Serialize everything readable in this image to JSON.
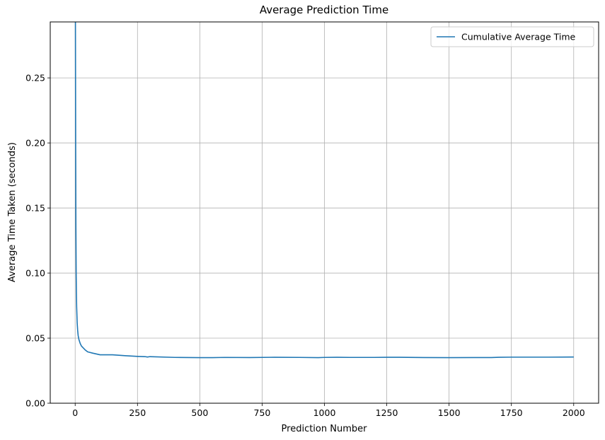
{
  "chart_data": {
    "type": "line",
    "title": "Average Prediction Time",
    "xlabel": "Prediction Number",
    "ylabel": "Average Time Taken (seconds)",
    "xlim": [
      -100,
      2100
    ],
    "ylim": [
      0,
      0.293
    ],
    "xticks": [
      0,
      250,
      500,
      750,
      1000,
      1250,
      1500,
      1750,
      2000
    ],
    "yticks": [
      0.0,
      0.05,
      0.1,
      0.15,
      0.2,
      0.25
    ],
    "xtick_labels": [
      "0",
      "250",
      "500",
      "750",
      "1000",
      "1250",
      "1500",
      "1750",
      "2000"
    ],
    "ytick_labels": [
      "0.00",
      "0.05",
      "0.10",
      "0.15",
      "0.20",
      "0.25"
    ],
    "grid": true,
    "legend_position": "top-right",
    "series": [
      {
        "name": "Cumulative Average Time",
        "color": "#1f77b4",
        "x": [
          1,
          2,
          3,
          4,
          5,
          6,
          8,
          10,
          12,
          15,
          20,
          25,
          30,
          40,
          50,
          70,
          100,
          150,
          200,
          250,
          280,
          290,
          300,
          400,
          500,
          550,
          600,
          700,
          800,
          900,
          975,
          1000,
          1050,
          1100,
          1200,
          1250,
          1300,
          1400,
          1500,
          1600,
          1670,
          1700,
          1750,
          1800,
          1900,
          2000
        ],
        "y": [
          0.3,
          0.2,
          0.135,
          0.1,
          0.085,
          0.074,
          0.062,
          0.056,
          0.052,
          0.049,
          0.046,
          0.044,
          0.043,
          0.041,
          0.0395,
          0.0385,
          0.0372,
          0.0372,
          0.0365,
          0.036,
          0.0358,
          0.0355,
          0.0358,
          0.0352,
          0.035,
          0.035,
          0.0352,
          0.0351,
          0.0353,
          0.0352,
          0.035,
          0.0352,
          0.0353,
          0.0352,
          0.0352,
          0.0353,
          0.0353,
          0.0351,
          0.035,
          0.0351,
          0.0351,
          0.0353,
          0.0354,
          0.0354,
          0.0354,
          0.0355
        ]
      }
    ]
  }
}
